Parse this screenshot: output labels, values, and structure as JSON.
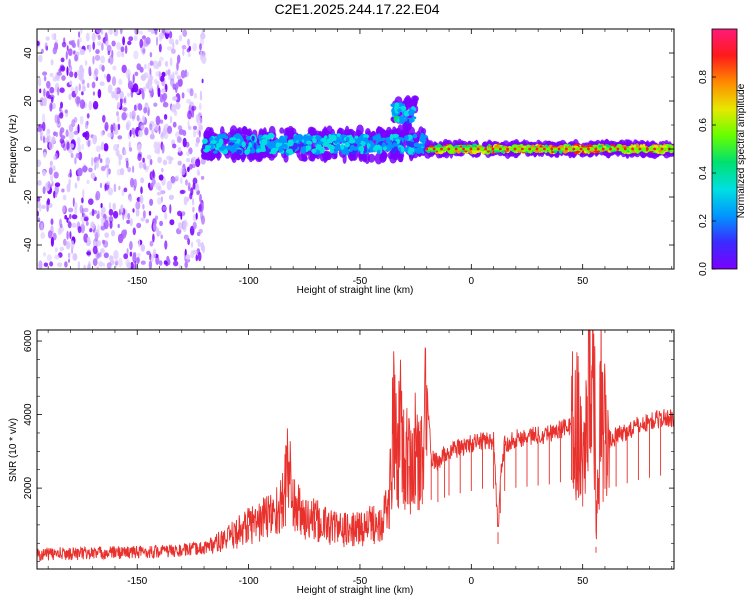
{
  "title": "C2E1.2025.244.17.22.E04",
  "colors": {
    "snr_line": "#e8302c",
    "frame": "#000000",
    "colorbar_stops": [
      "#7a00ff",
      "#3b2bff",
      "#0096ff",
      "#00e0e0",
      "#00e070",
      "#66ff00",
      "#e8e800",
      "#ff8a00",
      "#ff1a1a",
      "#ff1a7a"
    ]
  },
  "chart_data": [
    {
      "type": "heatmap",
      "name": "spectrogram",
      "xlabel": "Height of straight line (km)",
      "ylabel": "Frequency (Hz)",
      "xlim": [
        -195,
        91
      ],
      "ylim": [
        -50,
        50
      ],
      "xticks": [
        -150,
        -100,
        -50,
        0,
        50
      ],
      "yticks": [
        -40,
        -20,
        0,
        20,
        40
      ],
      "colorbar": {
        "label": "Normalized spectral amplitude",
        "range": [
          0,
          1
        ],
        "ticks": [
          "0.0",
          "0.2",
          "0.4",
          "0.6",
          "0.8"
        ],
        "tick_values": [
          0,
          0.2,
          0.4,
          0.6,
          0.8
        ]
      },
      "features": [
        {
          "x_range": [
            -195,
            -120
          ],
          "description_value": "broadband noise across all frequencies, amplitude ~0.05-0.15"
        },
        {
          "x_range": [
            -120,
            -20
          ],
          "y_center": 2,
          "amplitude": 0.35
        },
        {
          "x_range": [
            -35,
            -25
          ],
          "y_center": 15,
          "amplitude": 0.4
        },
        {
          "x_range": [
            -20,
            91
          ],
          "y_center": 0,
          "amplitude": 0.85
        }
      ]
    },
    {
      "type": "line",
      "name": "snr",
      "xlabel": "Height of straight line (km)",
      "ylabel": "SNR (10 * v/v)",
      "xlim": [
        -195,
        91
      ],
      "ylim": [
        -200,
        6300
      ],
      "xticks": [
        -150,
        -100,
        -50,
        0,
        50
      ],
      "yticks": [
        2000,
        4000,
        6000
      ],
      "series": [
        {
          "x": [
            -195,
            -180,
            -170,
            -160,
            -150,
            -140,
            -130,
            -120,
            -110,
            -105,
            -100,
            -95,
            -90,
            -85,
            -82,
            -80,
            -78,
            -75,
            -70,
            -65,
            -60,
            -55,
            -50,
            -45,
            -40,
            -37,
            -35,
            -33,
            -32,
            -30,
            -28,
            -25,
            -22,
            -20,
            -18,
            -15,
            -12,
            -10,
            -5,
            0,
            5,
            10,
            12,
            13,
            15,
            20,
            25,
            30,
            35,
            40,
            45,
            48,
            50,
            52,
            54,
            55,
            56,
            58,
            60,
            65,
            70,
            75,
            80,
            85,
            91
          ],
          "y": [
            200,
            220,
            230,
            250,
            260,
            280,
            300,
            380,
            600,
            800,
            1000,
            1100,
            1300,
            1500,
            2700,
            1600,
            1400,
            1200,
            1100,
            1000,
            900,
            850,
            900,
            1000,
            1200,
            1500,
            3800,
            2500,
            4600,
            2800,
            2600,
            3000,
            2600,
            4800,
            2800,
            2700,
            2900,
            3000,
            3100,
            3200,
            3300,
            3300,
            800,
            2200,
            3200,
            3350,
            3400,
            3450,
            3500,
            3600,
            3700,
            3600,
            2500,
            4500,
            5200,
            6200,
            400,
            4800,
            3300,
            3400,
            3550,
            3700,
            3800,
            3900,
            3900
          ]
        }
      ]
    }
  ]
}
